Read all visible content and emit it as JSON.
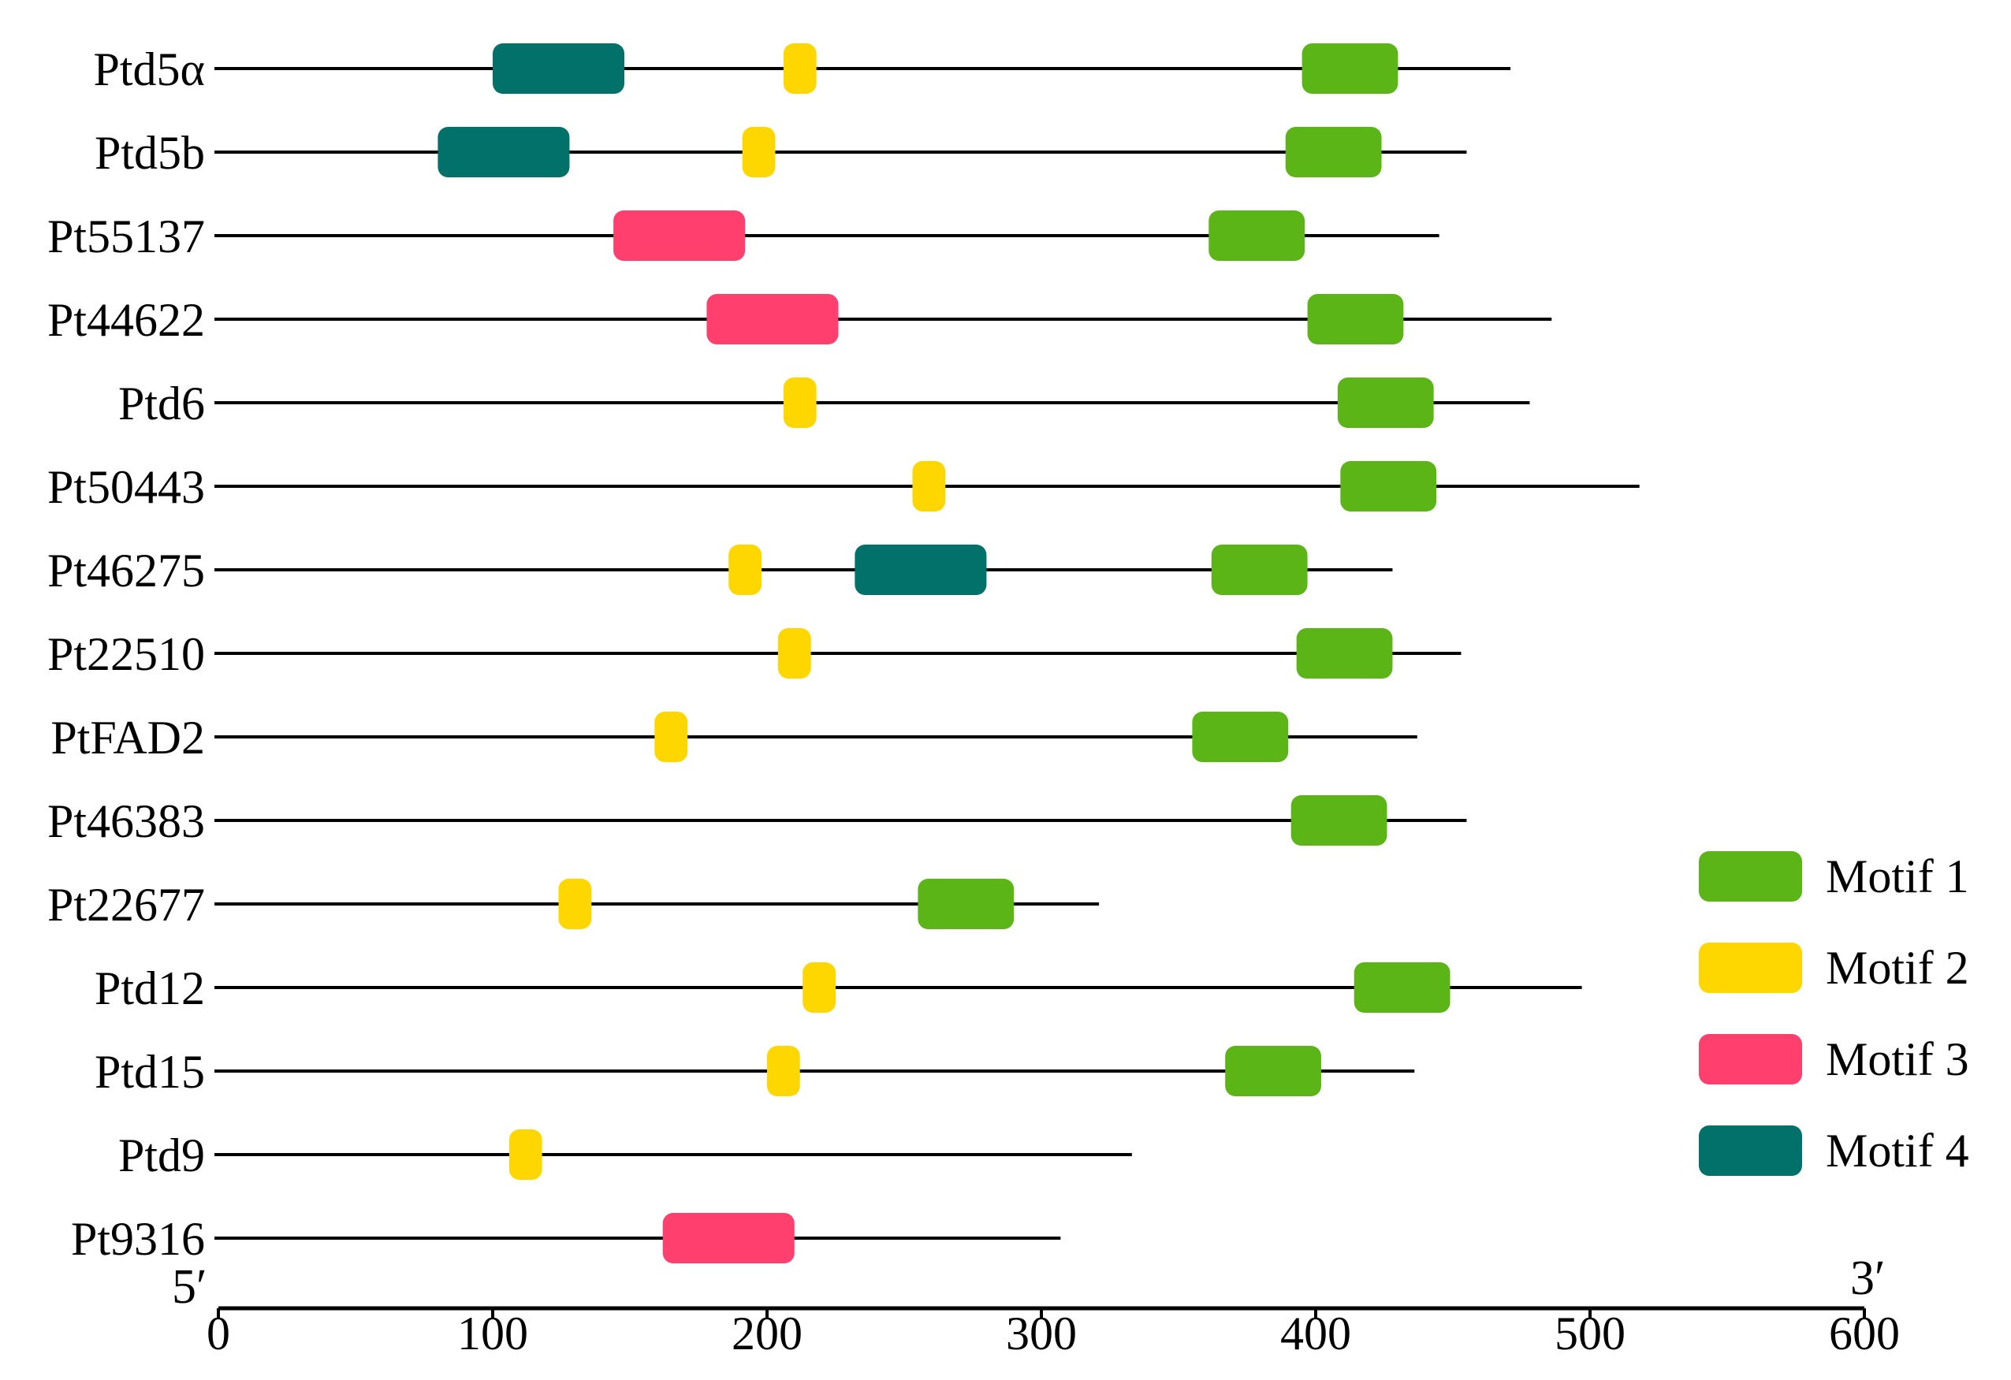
{
  "chart_data": {
    "type": "motif-diagram",
    "x_axis": {
      "range": [
        0,
        600
      ],
      "ticks": [
        0,
        100,
        200,
        300,
        400,
        500,
        600
      ],
      "tick_labels": [
        "0",
        "100",
        "200",
        "300",
        "400",
        "500",
        "600"
      ],
      "start_label": "5′",
      "end_label": "3′"
    },
    "motifs": [
      {
        "id": "motif1",
        "label": "Motif 1",
        "color": "#5cb517"
      },
      {
        "id": "motif2",
        "label": "Motif 2",
        "color": "#ffd700"
      },
      {
        "id": "motif3",
        "label": "Motif 3",
        "color": "#ff3f6d"
      },
      {
        "id": "motif4",
        "label": "Motif 4",
        "color": "#01716a"
      }
    ],
    "legend_position": "right",
    "genes": [
      {
        "name": "Ptd5α",
        "length": 471,
        "motifs": [
          {
            "motif": "motif4",
            "start": 100,
            "end": 148
          },
          {
            "motif": "motif2",
            "start": 206,
            "end": 218
          },
          {
            "motif": "motif1",
            "start": 395,
            "end": 430
          }
        ]
      },
      {
        "name": "Ptd5b",
        "length": 455,
        "motifs": [
          {
            "motif": "motif4",
            "start": 80,
            "end": 128
          },
          {
            "motif": "motif2",
            "start": 191,
            "end": 203
          },
          {
            "motif": "motif1",
            "start": 389,
            "end": 424
          }
        ]
      },
      {
        "name": "Pt55137",
        "length": 445,
        "motifs": [
          {
            "motif": "motif3",
            "start": 144,
            "end": 192
          },
          {
            "motif": "motif1",
            "start": 361,
            "end": 396
          }
        ]
      },
      {
        "name": "Pt44622",
        "length": 486,
        "motifs": [
          {
            "motif": "motif3",
            "start": 178,
            "end": 226
          },
          {
            "motif": "motif1",
            "start": 397,
            "end": 432
          }
        ]
      },
      {
        "name": "Ptd6",
        "length": 478,
        "motifs": [
          {
            "motif": "motif2",
            "start": 206,
            "end": 218
          },
          {
            "motif": "motif1",
            "start": 408,
            "end": 443
          }
        ]
      },
      {
        "name": "Pt50443",
        "length": 518,
        "motifs": [
          {
            "motif": "motif2",
            "start": 253,
            "end": 265
          },
          {
            "motif": "motif1",
            "start": 409,
            "end": 444
          }
        ]
      },
      {
        "name": "Pt46275",
        "length": 428,
        "motifs": [
          {
            "motif": "motif2",
            "start": 186,
            "end": 198
          },
          {
            "motif": "motif4",
            "start": 232,
            "end": 280
          },
          {
            "motif": "motif1",
            "start": 362,
            "end": 397
          }
        ]
      },
      {
        "name": "Pt22510",
        "length": 453,
        "motifs": [
          {
            "motif": "motif2",
            "start": 204,
            "end": 216
          },
          {
            "motif": "motif1",
            "start": 393,
            "end": 428
          }
        ]
      },
      {
        "name": "PtFAD2",
        "length": 437,
        "motifs": [
          {
            "motif": "motif2",
            "start": 159,
            "end": 171
          },
          {
            "motif": "motif1",
            "start": 355,
            "end": 390
          }
        ]
      },
      {
        "name": "Pt46383",
        "length": 455,
        "motifs": [
          {
            "motif": "motif1",
            "start": 391,
            "end": 426
          }
        ]
      },
      {
        "name": "Pt22677",
        "length": 321,
        "motifs": [
          {
            "motif": "motif2",
            "start": 124,
            "end": 136
          },
          {
            "motif": "motif1",
            "start": 255,
            "end": 290
          }
        ]
      },
      {
        "name": "Ptd12",
        "length": 497,
        "motifs": [
          {
            "motif": "motif2",
            "start": 213,
            "end": 225
          },
          {
            "motif": "motif1",
            "start": 414,
            "end": 449
          }
        ]
      },
      {
        "name": "Ptd15",
        "length": 436,
        "motifs": [
          {
            "motif": "motif2",
            "start": 200,
            "end": 212
          },
          {
            "motif": "motif1",
            "start": 367,
            "end": 402
          }
        ]
      },
      {
        "name": "Ptd9",
        "length": 333,
        "motifs": [
          {
            "motif": "motif2",
            "start": 106,
            "end": 118
          }
        ]
      },
      {
        "name": "Pt9316",
        "length": 307,
        "motifs": [
          {
            "motif": "motif3",
            "start": 162,
            "end": 210
          }
        ]
      }
    ]
  }
}
